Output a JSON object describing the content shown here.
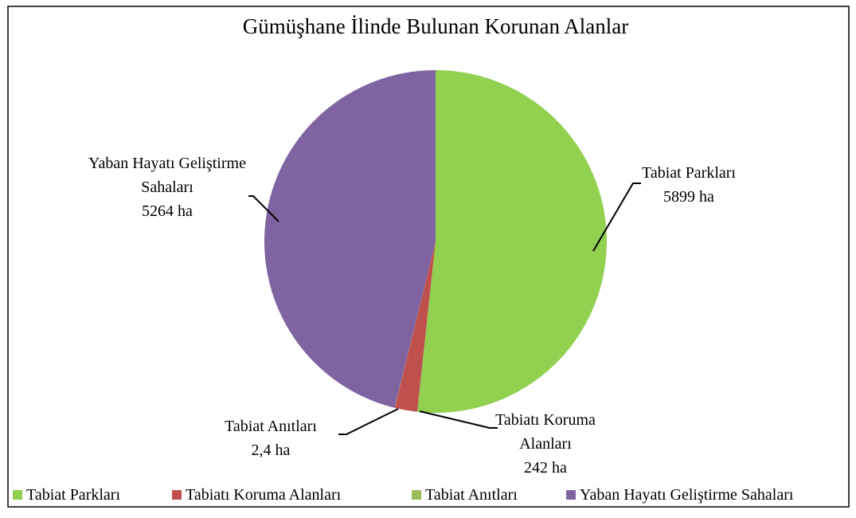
{
  "chart_data": {
    "type": "pie",
    "title": "Gümüşhane İlinde Bulunan Korunan Alanlar",
    "categories": [
      "Tabiat Parkları",
      "Tabiatı Koruma Alanları",
      "Tabiat Anıtları",
      "Yaban Hayatı Geliştirme Sahaları"
    ],
    "values": [
      5899,
      242,
      2.4,
      5264
    ],
    "value_labels": [
      "5899 ha",
      "242 ha",
      "2,4 ha",
      "5264 ha"
    ],
    "colors": [
      "#92d050",
      "#c0504d",
      "#9bbb59",
      "#8064a2"
    ],
    "legend": "bottom"
  }
}
